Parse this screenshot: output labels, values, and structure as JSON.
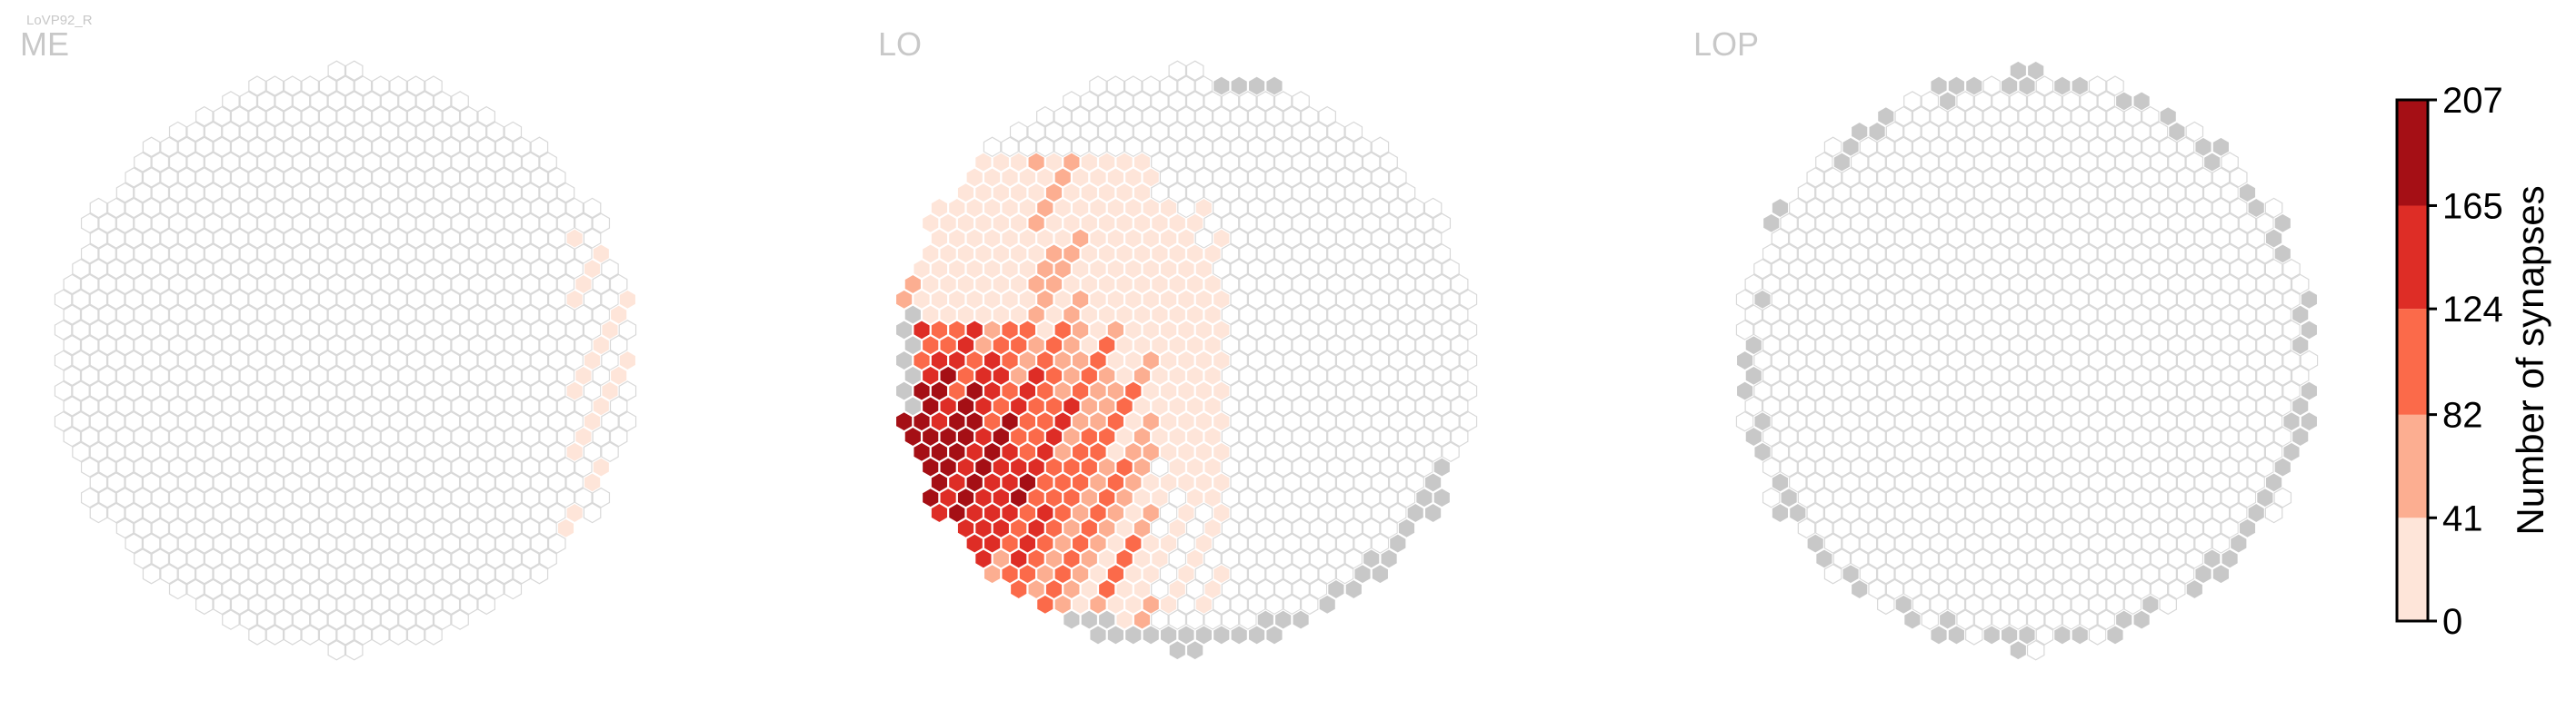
{
  "figure_title": "LoVP92_R",
  "chart_data": {
    "type": "heatmap",
    "subtype": "hexagonal eye-map",
    "title": "LoVP92_R",
    "panels": [
      {
        "name": "ME"
      },
      {
        "name": "LO"
      },
      {
        "name": "LOP"
      }
    ],
    "colorbar": {
      "label": "Number of synapses",
      "range": [
        0,
        207
      ],
      "ticks": [
        0,
        41,
        82,
        124,
        165,
        207
      ],
      "tick_labels": [
        "0",
        "41",
        "82",
        "124",
        "165",
        "207"
      ],
      "bins": [
        {
          "from": 0,
          "to": 41,
          "color": "#fee5d9"
        },
        {
          "from": 41,
          "to": 82,
          "color": "#fcae91"
        },
        {
          "from": 82,
          "to": 124,
          "color": "#fb6a4a"
        },
        {
          "from": 124,
          "to": 165,
          "color": "#de2d26"
        },
        {
          "from": 165,
          "to": 207,
          "color": "#a50f15"
        }
      ]
    },
    "colors": {
      "empty_column": "#ffffff",
      "empty_outline": "#d8d8d8",
      "no_data_column": "#c8c8c8",
      "title_gray": "#c8c8c8"
    }
  }
}
